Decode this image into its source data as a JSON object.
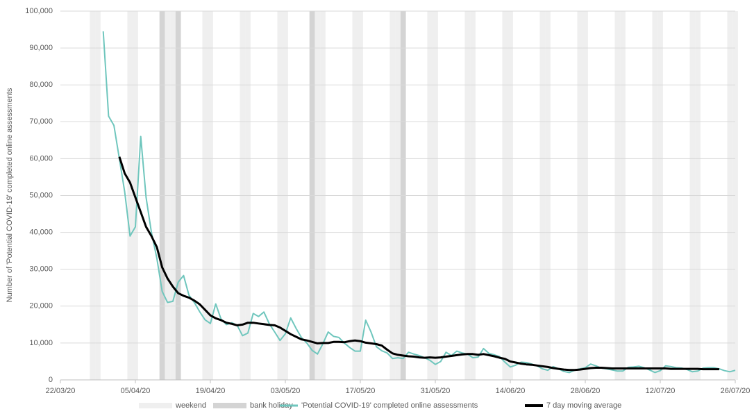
{
  "chart_data": {
    "type": "line",
    "y_label": "Number of 'Potential COVID-19' completed online assessments",
    "xlim": [
      "22/03/20",
      "26/07/20"
    ],
    "xticks": [
      "22/03/20",
      "05/04/20",
      "19/04/20",
      "03/05/20",
      "17/05/20",
      "31/05/20",
      "14/06/20",
      "28/06/20",
      "12/07/20",
      "26/07/20"
    ],
    "ylim": [
      0,
      100000
    ],
    "yticks": [
      0,
      {
        "value": 10000,
        "label": "10,000"
      },
      {
        "value": 20000,
        "label": "20,000"
      },
      {
        "value": 30000,
        "label": "30,000"
      },
      {
        "value": 40000,
        "label": "40,000"
      },
      {
        "value": 50000,
        "label": "50,000"
      },
      {
        "value": 60000,
        "label": "60,000"
      },
      {
        "value": 70000,
        "label": "70,000"
      },
      {
        "value": 80000,
        "label": "80,000"
      },
      {
        "value": 90000,
        "label": "90,000"
      },
      {
        "value": 100000,
        "label": "100,000"
      }
    ],
    "grid": true,
    "shading": [
      {
        "name": "weekend",
        "color": "#efefef",
        "dates": [
          "28/03/20",
          "29/03/20",
          "04/04/20",
          "05/04/20",
          "11/04/20",
          "12/04/20",
          "18/04/20",
          "19/04/20",
          "25/04/20",
          "26/04/20",
          "02/05/20",
          "03/05/20",
          "09/05/20",
          "10/05/20",
          "16/05/20",
          "17/05/20",
          "23/05/20",
          "24/05/20",
          "30/05/20",
          "31/05/20",
          "06/06/20",
          "07/06/20",
          "13/06/20",
          "14/06/20",
          "20/06/20",
          "21/06/20",
          "27/06/20",
          "28/06/20",
          "04/07/20",
          "05/07/20",
          "11/07/20",
          "12/07/20",
          "18/07/20",
          "19/07/20",
          "25/07/20",
          "26/07/20"
        ]
      },
      {
        "name": "bank holiday",
        "color": "#d4d4d4",
        "dates": [
          "10/04/20",
          "13/04/20",
          "08/05/20",
          "25/05/20"
        ]
      }
    ],
    "x": [
      "30/03/20",
      "31/03/20",
      "01/04/20",
      "02/04/20",
      "03/04/20",
      "04/04/20",
      "05/04/20",
      "06/04/20",
      "07/04/20",
      "08/04/20",
      "09/04/20",
      "10/04/20",
      "11/04/20",
      "12/04/20",
      "13/04/20",
      "14/04/20",
      "15/04/20",
      "16/04/20",
      "17/04/20",
      "18/04/20",
      "19/04/20",
      "20/04/20",
      "21/04/20",
      "22/04/20",
      "23/04/20",
      "24/04/20",
      "25/04/20",
      "26/04/20",
      "27/04/20",
      "28/04/20",
      "29/04/20",
      "30/04/20",
      "01/05/20",
      "02/05/20",
      "03/05/20",
      "04/05/20",
      "05/05/20",
      "06/05/20",
      "07/05/20",
      "08/05/20",
      "09/05/20",
      "10/05/20",
      "11/05/20",
      "12/05/20",
      "13/05/20",
      "14/05/20",
      "15/05/20",
      "16/05/20",
      "17/05/20",
      "18/05/20",
      "19/05/20",
      "20/05/20",
      "21/05/20",
      "22/05/20",
      "23/05/20",
      "24/05/20",
      "25/05/20",
      "26/05/20",
      "27/05/20",
      "28/05/20",
      "29/05/20",
      "30/05/20",
      "31/05/20",
      "01/06/20",
      "02/06/20",
      "03/06/20",
      "04/06/20",
      "05/06/20",
      "06/06/20",
      "07/06/20",
      "08/06/20",
      "09/06/20",
      "10/06/20",
      "11/06/20",
      "12/06/20",
      "13/06/20",
      "14/06/20",
      "15/06/20",
      "16/06/20",
      "17/06/20",
      "18/06/20",
      "19/06/20",
      "20/06/20",
      "21/06/20",
      "22/06/20",
      "23/06/20",
      "24/06/20",
      "25/06/20",
      "26/06/20",
      "27/06/20",
      "28/06/20",
      "29/06/20",
      "30/06/20",
      "01/07/20",
      "02/07/20",
      "03/07/20",
      "04/07/20",
      "05/07/20",
      "06/07/20",
      "07/07/20",
      "08/07/20",
      "09/07/20",
      "10/07/20",
      "11/07/20",
      "12/07/20",
      "13/07/20",
      "14/07/20",
      "15/07/20",
      "16/07/20",
      "17/07/20",
      "18/07/20",
      "19/07/20",
      "20/07/20",
      "21/07/20",
      "22/07/20",
      "23/07/20",
      "24/07/20",
      "25/07/20",
      "26/07/20"
    ],
    "series": [
      {
        "name": "'Potential COVID-19' completed online assessments",
        "color": "#6fc6bd",
        "width": 2,
        "values": [
          94500,
          71500,
          69000,
          60000,
          51000,
          39000,
          41500,
          66000,
          49500,
          40000,
          33000,
          24000,
          21000,
          21300,
          26500,
          28300,
          23000,
          21000,
          18500,
          16300,
          15300,
          20600,
          16500,
          15000,
          15500,
          14800,
          12000,
          12700,
          18000,
          17200,
          18400,
          15200,
          13000,
          10700,
          12500,
          16800,
          14000,
          11500,
          10000,
          8000,
          7000,
          9800,
          13000,
          11800,
          11500,
          10000,
          8800,
          7800,
          7800,
          16200,
          13000,
          9000,
          7900,
          7300,
          5800,
          6000,
          5800,
          7500,
          7000,
          6600,
          6000,
          5300,
          4200,
          5000,
          7500,
          6600,
          7800,
          7300,
          7000,
          6000,
          6200,
          8500,
          7200,
          6800,
          6300,
          4800,
          3500,
          4000,
          4800,
          4700,
          4300,
          3800,
          3000,
          2600,
          3600,
          3000,
          2300,
          2000,
          2600,
          3000,
          3300,
          4300,
          3800,
          3200,
          3000,
          2700,
          2400,
          2400,
          3400,
          3500,
          3700,
          3300,
          2700,
          2000,
          2500,
          3800,
          3600,
          3300,
          3200,
          2800,
          2200,
          2400,
          3200,
          3300,
          3300,
          3000,
          2500,
          2200,
          2600
        ]
      },
      {
        "name": "7 day moving average",
        "color": "#000000",
        "width": 3,
        "values": [
          null,
          null,
          null,
          60500,
          56000,
          53500,
          49500,
          45500,
          41500,
          39000,
          36000,
          30500,
          27500,
          25300,
          23500,
          22800,
          22300,
          21500,
          20500,
          19000,
          17500,
          16700,
          16200,
          15500,
          15200,
          14800,
          15000,
          15500,
          15500,
          15300,
          15100,
          14900,
          14800,
          14200,
          13300,
          12400,
          11700,
          11000,
          10700,
          10300,
          9900,
          10000,
          10000,
          10300,
          10300,
          10200,
          10500,
          10700,
          10500,
          10100,
          9900,
          9700,
          9300,
          8200,
          7200,
          6800,
          6600,
          6400,
          6300,
          6100,
          6000,
          6100,
          6000,
          6100,
          6300,
          6500,
          6700,
          6900,
          7000,
          7000,
          6800,
          7000,
          6700,
          6400,
          6000,
          5700,
          5000,
          4700,
          4400,
          4200,
          4100,
          3900,
          3700,
          3500,
          3200,
          3000,
          2800,
          2700,
          2700,
          2800,
          3000,
          3200,
          3300,
          3300,
          3200,
          3100,
          3100,
          3100,
          3100,
          3100,
          3100,
          3100,
          3100,
          3100,
          3100,
          3100,
          3000,
          3000,
          3000,
          3000,
          3000,
          3000,
          2900,
          2900,
          2900,
          2900,
          null,
          null,
          null
        ]
      }
    ]
  }
}
